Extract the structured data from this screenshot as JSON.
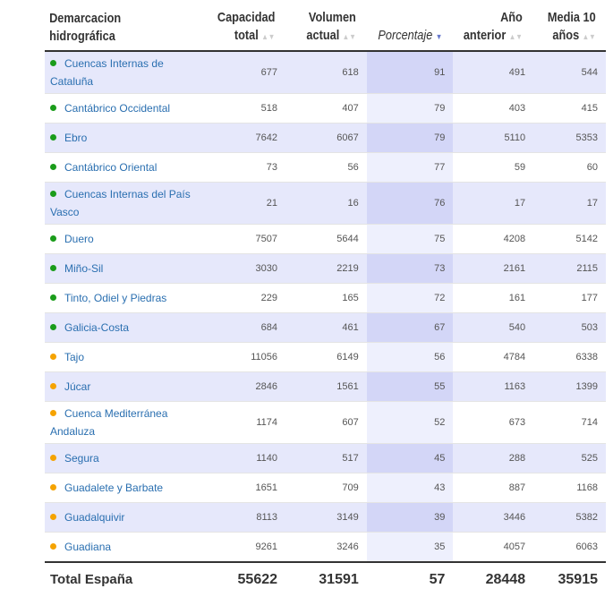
{
  "headers": [
    "Demarcacion hidrográfica",
    "Capacidad total",
    "Volumen actual",
    "Porcentaje",
    "Año anterior",
    "Media 10 años"
  ],
  "colors": {
    "green": "#1a9c1a",
    "orange": "#f5a300"
  },
  "rows": [
    {
      "name": "Cuencas Internas de Cataluña",
      "status": "green",
      "cap": "677",
      "vol": "618",
      "pct": "91",
      "prev": "491",
      "avg": "544"
    },
    {
      "name": "Cantábrico Occidental",
      "status": "green",
      "cap": "518",
      "vol": "407",
      "pct": "79",
      "prev": "403",
      "avg": "415"
    },
    {
      "name": "Ebro",
      "status": "green",
      "cap": "7642",
      "vol": "6067",
      "pct": "79",
      "prev": "5110",
      "avg": "5353"
    },
    {
      "name": "Cantábrico Oriental",
      "status": "green",
      "cap": "73",
      "vol": "56",
      "pct": "77",
      "prev": "59",
      "avg": "60"
    },
    {
      "name": "Cuencas Internas del País Vasco",
      "status": "green",
      "cap": "21",
      "vol": "16",
      "pct": "76",
      "prev": "17",
      "avg": "17"
    },
    {
      "name": "Duero",
      "status": "green",
      "cap": "7507",
      "vol": "5644",
      "pct": "75",
      "prev": "4208",
      "avg": "5142"
    },
    {
      "name": "Miño-Sil",
      "status": "green",
      "cap": "3030",
      "vol": "2219",
      "pct": "73",
      "prev": "2161",
      "avg": "2115"
    },
    {
      "name": "Tinto, Odiel y Piedras",
      "status": "green",
      "cap": "229",
      "vol": "165",
      "pct": "72",
      "prev": "161",
      "avg": "177"
    },
    {
      "name": "Galicia-Costa",
      "status": "green",
      "cap": "684",
      "vol": "461",
      "pct": "67",
      "prev": "540",
      "avg": "503"
    },
    {
      "name": "Tajo",
      "status": "orange",
      "cap": "11056",
      "vol": "6149",
      "pct": "56",
      "prev": "4784",
      "avg": "6338"
    },
    {
      "name": "Júcar",
      "status": "orange",
      "cap": "2846",
      "vol": "1561",
      "pct": "55",
      "prev": "1163",
      "avg": "1399"
    },
    {
      "name": "Cuenca Mediterránea Andaluza",
      "status": "orange",
      "cap": "1174",
      "vol": "607",
      "pct": "52",
      "prev": "673",
      "avg": "714"
    },
    {
      "name": "Segura",
      "status": "orange",
      "cap": "1140",
      "vol": "517",
      "pct": "45",
      "prev": "288",
      "avg": "525"
    },
    {
      "name": "Guadalete y Barbate",
      "status": "orange",
      "cap": "1651",
      "vol": "709",
      "pct": "43",
      "prev": "887",
      "avg": "1168"
    },
    {
      "name": "Guadalquivir",
      "status": "orange",
      "cap": "8113",
      "vol": "3149",
      "pct": "39",
      "prev": "3446",
      "avg": "5382"
    },
    {
      "name": "Guadiana",
      "status": "orange",
      "cap": "9261",
      "vol": "3246",
      "pct": "35",
      "prev": "4057",
      "avg": "6063"
    }
  ],
  "total": {
    "name": "Total España",
    "cap": "55622",
    "vol": "31591",
    "pct": "57",
    "prev": "28448",
    "avg": "35915"
  }
}
